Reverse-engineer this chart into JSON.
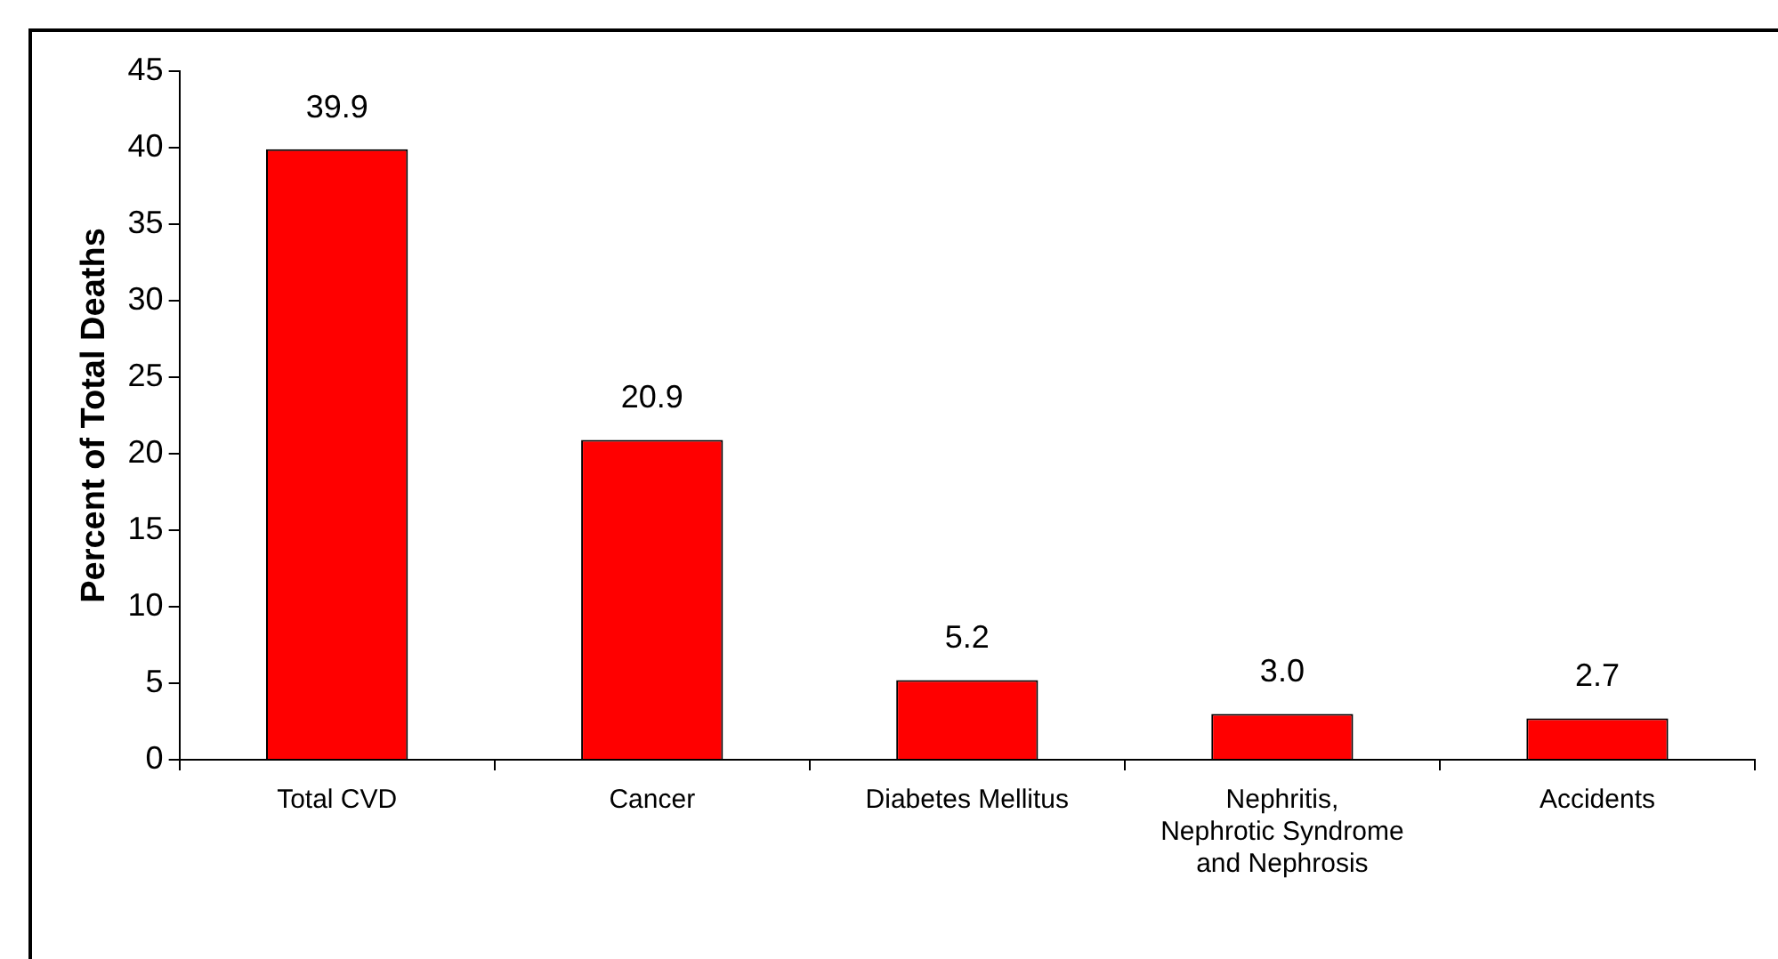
{
  "chart_data": {
    "type": "bar",
    "ylabel": "Percent of Total Deaths",
    "categories": [
      "Total CVD",
      "Cancer",
      "Diabetes Mellitus",
      "Nephritis, Nephrotic Syndrome and Nephrosis",
      "Accidents"
    ],
    "values": [
      39.9,
      20.9,
      5.2,
      3.0,
      2.7
    ],
    "value_labels": [
      "39.9",
      "20.9",
      "5.2",
      "3.0",
      "2.7"
    ],
    "color": "#ff0000",
    "ylim": [
      0,
      45
    ],
    "yticks": [
      0,
      5,
      10,
      15,
      20,
      25,
      30,
      35,
      40,
      45
    ],
    "grid": false,
    "legend": false
  }
}
